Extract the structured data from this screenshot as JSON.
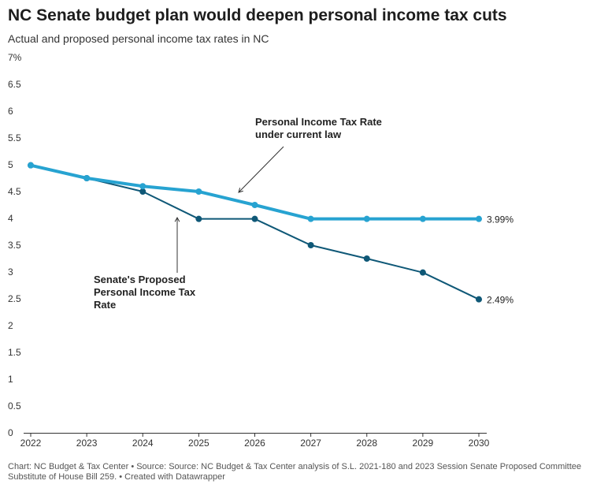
{
  "chart_data": {
    "type": "line",
    "title": "NC Senate budget plan would deepen personal income tax cuts",
    "subtitle": "Actual and proposed personal income tax rates in NC",
    "x": [
      "2022",
      "2023",
      "2024",
      "2025",
      "2026",
      "2027",
      "2028",
      "2029",
      "2030"
    ],
    "ylim": [
      0,
      7
    ],
    "yticks": [
      "0",
      "0.5",
      "1",
      "1.5",
      "2",
      "2.5",
      "3",
      "3.5",
      "4",
      "4.5",
      "5",
      "5.5",
      "6",
      "6.5",
      "7%"
    ],
    "grid": false,
    "series": [
      {
        "name": "Personal Income Tax Rate under current law",
        "color": "#27a3d1",
        "values": [
          4.99,
          4.75,
          4.6,
          4.5,
          4.25,
          3.99,
          3.99,
          3.99,
          3.99
        ],
        "end_label": "3.99%"
      },
      {
        "name": "Senate's Proposed Personal Income Tax Rate",
        "color": "#0f5877",
        "values": [
          4.99,
          4.75,
          4.5,
          3.99,
          3.99,
          3.5,
          3.25,
          2.99,
          2.49
        ],
        "end_label": "2.49%"
      }
    ],
    "annotations": [
      {
        "lines": [
          "Personal Income Tax Rate",
          "under current law"
        ],
        "points_to_series": 0
      },
      {
        "lines": [
          "Senate's Proposed",
          "Personal Income Tax",
          "Rate"
        ],
        "points_to_series": 1
      }
    ]
  },
  "footer": {
    "text": "Chart: NC Budget & Tax Center • Source: Source: NC Budget & Tax Center analysis of S.L. 2021-180 and 2023 Session Senate Proposed Committee Substitute of House Bill 259. • Created with Datawrapper"
  }
}
